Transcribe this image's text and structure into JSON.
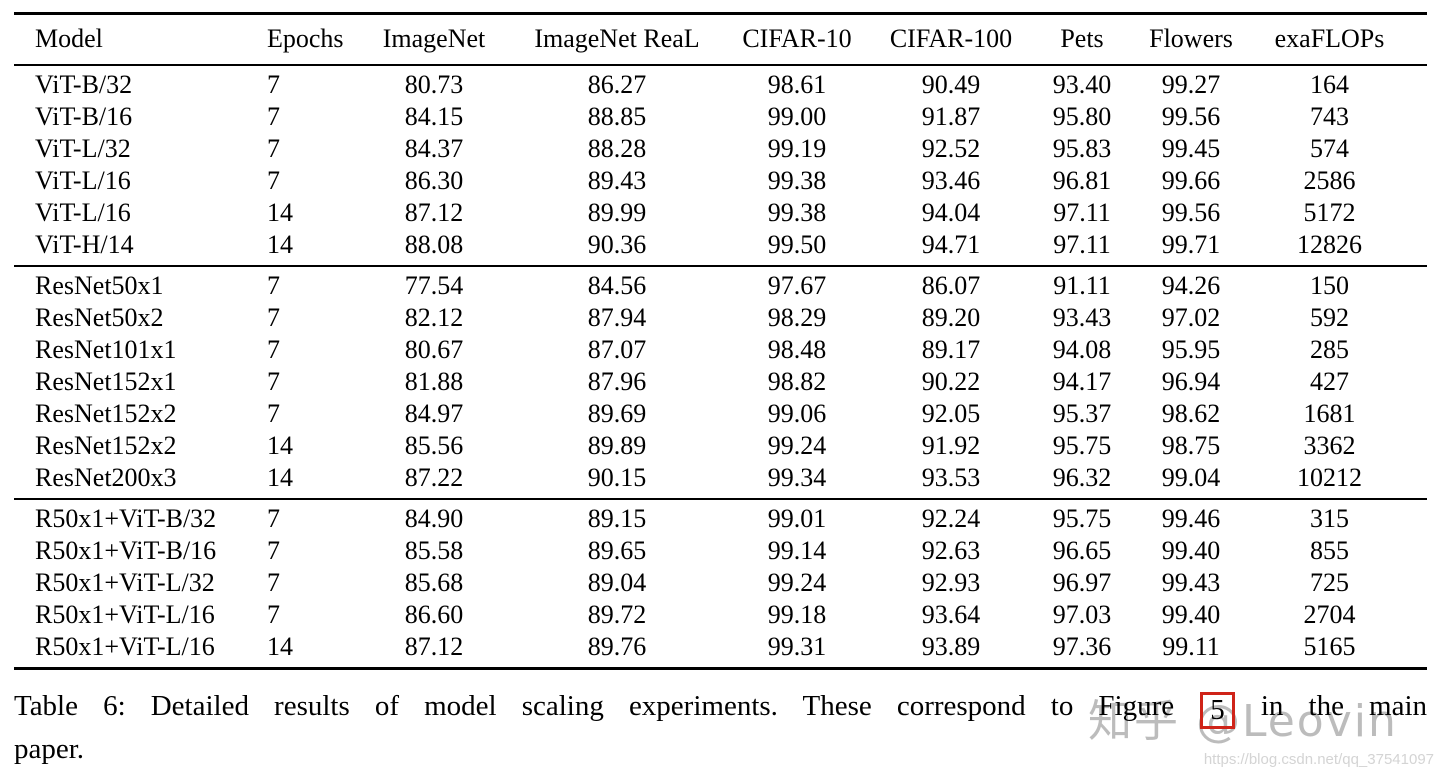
{
  "colors": {
    "background": "#ffffff",
    "text": "#000000",
    "rule": "#000000",
    "figure_ref_box": "#cf2318",
    "watermark_gray": "#bcbcbc",
    "url_watermark_gray": "#d4d4d4"
  },
  "table": {
    "columns": [
      "Model",
      "Epochs",
      "ImageNet",
      "ImageNet ReaL",
      "CIFAR-10",
      "CIFAR-100",
      "Pets",
      "Flowers",
      "exaFLOPs"
    ],
    "groups": [
      {
        "rows": [
          [
            "ViT-B/32",
            "7",
            "80.73",
            "86.27",
            "98.61",
            "90.49",
            "93.40",
            "99.27",
            "164"
          ],
          [
            "ViT-B/16",
            "7",
            "84.15",
            "88.85",
            "99.00",
            "91.87",
            "95.80",
            "99.56",
            "743"
          ],
          [
            "ViT-L/32",
            "7",
            "84.37",
            "88.28",
            "99.19",
            "92.52",
            "95.83",
            "99.45",
            "574"
          ],
          [
            "ViT-L/16",
            "7",
            "86.30",
            "89.43",
            "99.38",
            "93.46",
            "96.81",
            "99.66",
            "2586"
          ],
          [
            "ViT-L/16",
            "14",
            "87.12",
            "89.99",
            "99.38",
            "94.04",
            "97.11",
            "99.56",
            "5172"
          ],
          [
            "ViT-H/14",
            "14",
            "88.08",
            "90.36",
            "99.50",
            "94.71",
            "97.11",
            "99.71",
            "12826"
          ]
        ]
      },
      {
        "rows": [
          [
            "ResNet50x1",
            "7",
            "77.54",
            "84.56",
            "97.67",
            "86.07",
            "91.11",
            "94.26",
            "150"
          ],
          [
            "ResNet50x2",
            "7",
            "82.12",
            "87.94",
            "98.29",
            "89.20",
            "93.43",
            "97.02",
            "592"
          ],
          [
            "ResNet101x1",
            "7",
            "80.67",
            "87.07",
            "98.48",
            "89.17",
            "94.08",
            "95.95",
            "285"
          ],
          [
            "ResNet152x1",
            "7",
            "81.88",
            "87.96",
            "98.82",
            "90.22",
            "94.17",
            "96.94",
            "427"
          ],
          [
            "ResNet152x2",
            "7",
            "84.97",
            "89.69",
            "99.06",
            "92.05",
            "95.37",
            "98.62",
            "1681"
          ],
          [
            "ResNet152x2",
            "14",
            "85.56",
            "89.89",
            "99.24",
            "91.92",
            "95.75",
            "98.75",
            "3362"
          ],
          [
            "ResNet200x3",
            "14",
            "87.22",
            "90.15",
            "99.34",
            "93.53",
            "96.32",
            "99.04",
            "10212"
          ]
        ]
      },
      {
        "rows": [
          [
            "R50x1+ViT-B/32",
            "7",
            "84.90",
            "89.15",
            "99.01",
            "92.24",
            "95.75",
            "99.46",
            "315"
          ],
          [
            "R50x1+ViT-B/16",
            "7",
            "85.58",
            "89.65",
            "99.14",
            "92.63",
            "96.65",
            "99.40",
            "855"
          ],
          [
            "R50x1+ViT-L/32",
            "7",
            "85.68",
            "89.04",
            "99.24",
            "92.93",
            "96.97",
            "99.43",
            "725"
          ],
          [
            "R50x1+ViT-L/16",
            "7",
            "86.60",
            "89.72",
            "99.18",
            "93.64",
            "97.03",
            "99.40",
            "2704"
          ],
          [
            "R50x1+ViT-L/16",
            "14",
            "87.12",
            "89.76",
            "99.31",
            "93.89",
            "97.36",
            "99.11",
            "5165"
          ]
        ]
      }
    ]
  },
  "caption": {
    "line1_prefix": "Table 6:  Detailed results of model scaling experiments.  These correspond to Figure",
    "figure_ref": "5",
    "line1_suffix": "in the main",
    "line2": "paper."
  },
  "watermarks": {
    "zhihu": "知乎 @Leovin",
    "csdn_url": "https://blog.csdn.net/qq_37541097"
  }
}
